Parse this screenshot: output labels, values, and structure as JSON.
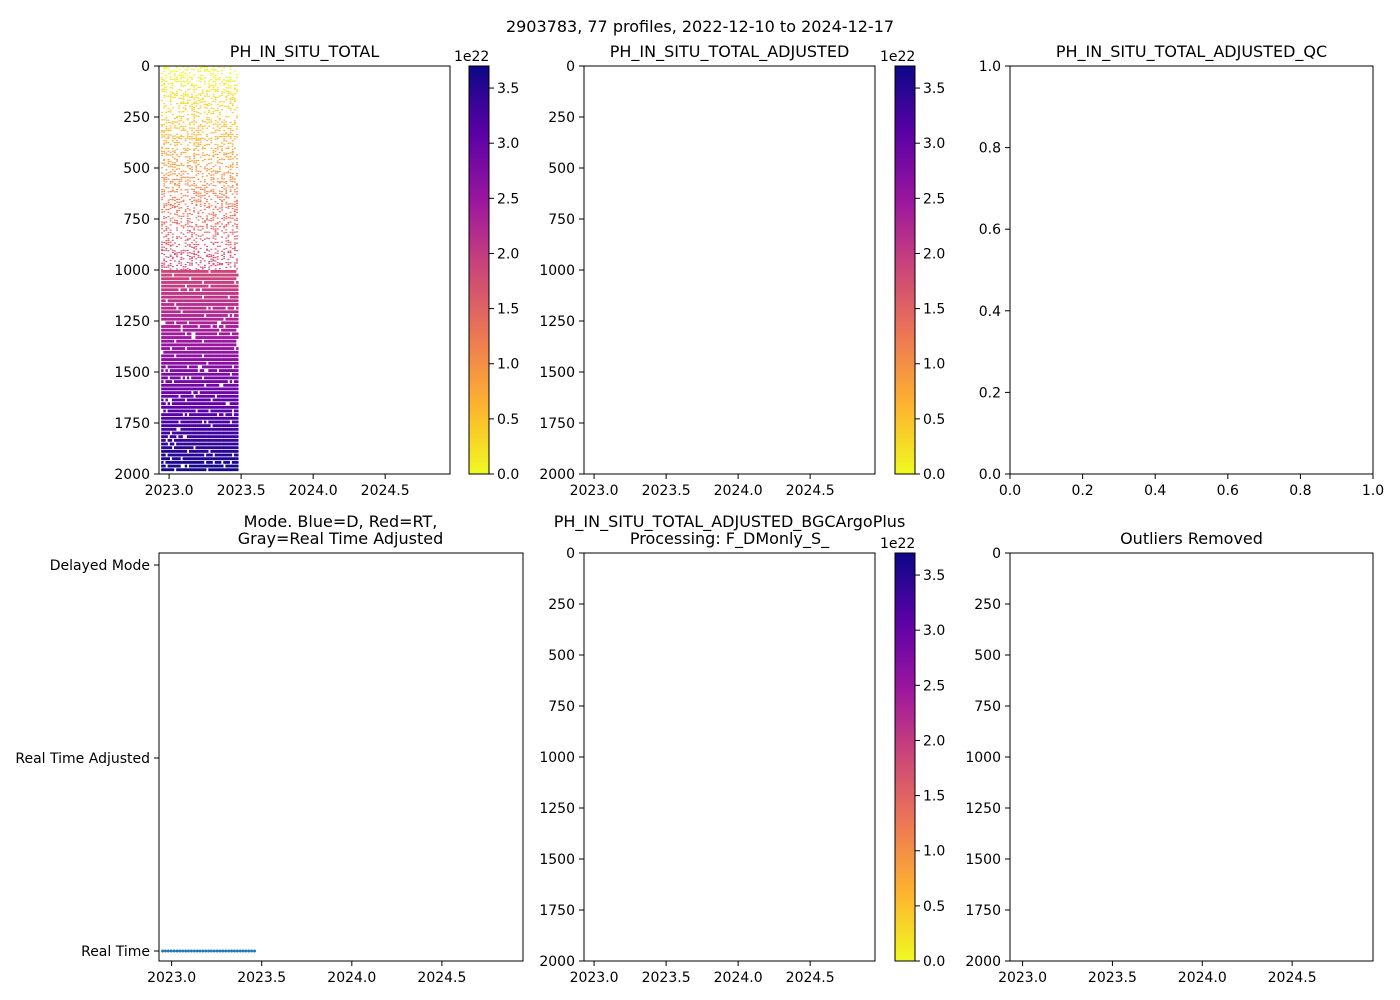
{
  "figure": {
    "suptitle": "2903783, 77 profiles, 2022-12-10 to 2024-12-17"
  },
  "colormap": {
    "name": "plasma_r",
    "stops": [
      "#f0f921",
      "#fdb42f",
      "#ed7953",
      "#cc4778",
      "#9c179e",
      "#5c01a6",
      "#0d0887"
    ]
  },
  "mode_colors": {
    "delayed": "#1f4fd8",
    "real_time": "#d62728",
    "real_time_adjusted": "#808080",
    "dots": "#1f77b4"
  },
  "chart_data": [
    {
      "id": "p1",
      "type": "heatmap",
      "title": "PH_IN_SITU_TOTAL",
      "xlim": [
        2022.93,
        2024.95
      ],
      "ylim": [
        2000,
        0
      ],
      "xticks": [
        "2023.0",
        "2023.5",
        "2024.0",
        "2024.5"
      ],
      "yticks": [
        "0",
        "250",
        "500",
        "750",
        "1000",
        "1250",
        "1500",
        "1750",
        "2000"
      ],
      "colorbar": {
        "exponent_label": "1e22",
        "range": [
          0,
          3.7
        ],
        "ticks": [
          "0.0",
          "0.5",
          "1.0",
          "1.5",
          "2.0",
          "2.5",
          "3.0",
          "3.5"
        ]
      },
      "data_extent": {
        "time_start": 2022.945,
        "time_end": 2023.48,
        "sparse_depth_end": 1000,
        "dense_depth_end": 1980,
        "value_at_depth_0": 0.0,
        "value_at_depth_2000": 3.7
      }
    },
    {
      "id": "p2",
      "type": "heatmap",
      "title": "PH_IN_SITU_TOTAL_ADJUSTED",
      "xlim": [
        2022.93,
        2024.95
      ],
      "ylim": [
        2000,
        0
      ],
      "xticks": [
        "2023.0",
        "2023.5",
        "2024.0",
        "2024.5"
      ],
      "yticks": [
        "0",
        "250",
        "500",
        "750",
        "1000",
        "1250",
        "1500",
        "1750",
        "2000"
      ],
      "colorbar": {
        "exponent_label": "1e22",
        "range": [
          0,
          3.7
        ],
        "ticks": [
          "0.0",
          "0.5",
          "1.0",
          "1.5",
          "2.0",
          "2.5",
          "3.0",
          "3.5"
        ]
      },
      "values": []
    },
    {
      "id": "p3",
      "type": "scatter",
      "title": "PH_IN_SITU_TOTAL_ADJUSTED_QC",
      "xlim": [
        0,
        1
      ],
      "ylim": [
        0,
        1
      ],
      "xticks": [
        "0.0",
        "0.2",
        "0.4",
        "0.6",
        "0.8",
        "1.0"
      ],
      "yticks": [
        "0.0",
        "0.2",
        "0.4",
        "0.6",
        "0.8",
        "1.0"
      ],
      "values": []
    },
    {
      "id": "p4",
      "type": "scatter",
      "title_lines": [
        "Mode. Blue=D, Red=RT,",
        "Gray=Real Time Adjusted"
      ],
      "xlim": [
        2022.93,
        2024.95
      ],
      "ylim": [
        0,
        2
      ],
      "xticks": [
        "2023.0",
        "2023.5",
        "2024.0",
        "2024.5"
      ],
      "yticks": [
        "Real Time",
        "Real Time Adjusted",
        "Delayed Mode"
      ],
      "points": {
        "mode": "Real Time",
        "mode_value": 0,
        "count": 33,
        "time_start": 2022.95,
        "time_end": 2023.46
      }
    },
    {
      "id": "p5",
      "type": "heatmap",
      "title_lines": [
        "PH_IN_SITU_TOTAL_ADJUSTED_BGCArgoPlus",
        "Processing: F_DMonly_S_"
      ],
      "xlim": [
        2022.93,
        2024.95
      ],
      "ylim": [
        2000,
        0
      ],
      "xticks": [
        "2023.0",
        "2023.5",
        "2024.0",
        "2024.5"
      ],
      "yticks": [
        "0",
        "250",
        "500",
        "750",
        "1000",
        "1250",
        "1500",
        "1750",
        "2000"
      ],
      "colorbar": {
        "exponent_label": "1e22",
        "range": [
          0,
          3.7
        ],
        "ticks": [
          "0.0",
          "0.5",
          "1.0",
          "1.5",
          "2.0",
          "2.5",
          "3.0",
          "3.5"
        ]
      },
      "values": []
    },
    {
      "id": "p6",
      "type": "heatmap",
      "title": "Outliers Removed",
      "xlim": [
        2022.93,
        2024.95
      ],
      "ylim": [
        2000,
        0
      ],
      "xticks": [
        "2023.0",
        "2023.5",
        "2024.0",
        "2024.5"
      ],
      "yticks": [
        "0",
        "250",
        "500",
        "750",
        "1000",
        "1250",
        "1500",
        "1750",
        "2000"
      ],
      "values": []
    }
  ]
}
